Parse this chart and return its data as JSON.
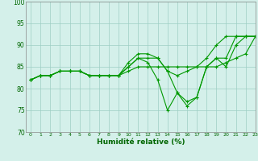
{
  "xlabel": "Humidité relative (%)",
  "background_color": "#d4f0ea",
  "grid_color": "#9ecec4",
  "line_color": "#009900",
  "xlim": [
    -0.5,
    23
  ],
  "ylim": [
    70,
    100
  ],
  "yticks": [
    70,
    75,
    80,
    85,
    90,
    95,
    100
  ],
  "xticks": [
    0,
    1,
    2,
    3,
    4,
    5,
    6,
    7,
    8,
    9,
    10,
    11,
    12,
    13,
    14,
    15,
    16,
    17,
    18,
    19,
    20,
    21,
    22,
    23
  ],
  "series": [
    [
      82,
      83,
      83,
      84,
      84,
      84,
      83,
      83,
      83,
      83,
      86,
      88,
      88,
      87,
      84,
      83,
      84,
      85,
      87,
      90,
      92,
      92,
      92,
      92
    ],
    [
      82,
      83,
      83,
      84,
      84,
      84,
      83,
      83,
      83,
      83,
      85,
      87,
      87,
      87,
      84,
      79,
      77,
      78,
      85,
      87,
      87,
      92,
      92,
      92
    ],
    [
      82,
      83,
      83,
      84,
      84,
      84,
      83,
      83,
      83,
      83,
      85,
      87,
      86,
      82,
      75,
      79,
      76,
      78,
      85,
      87,
      85,
      90,
      92,
      92
    ],
    [
      82,
      83,
      83,
      84,
      84,
      84,
      83,
      83,
      83,
      83,
      84,
      85,
      85,
      85,
      85,
      85,
      85,
      85,
      85,
      85,
      86,
      87,
      88,
      92
    ]
  ]
}
